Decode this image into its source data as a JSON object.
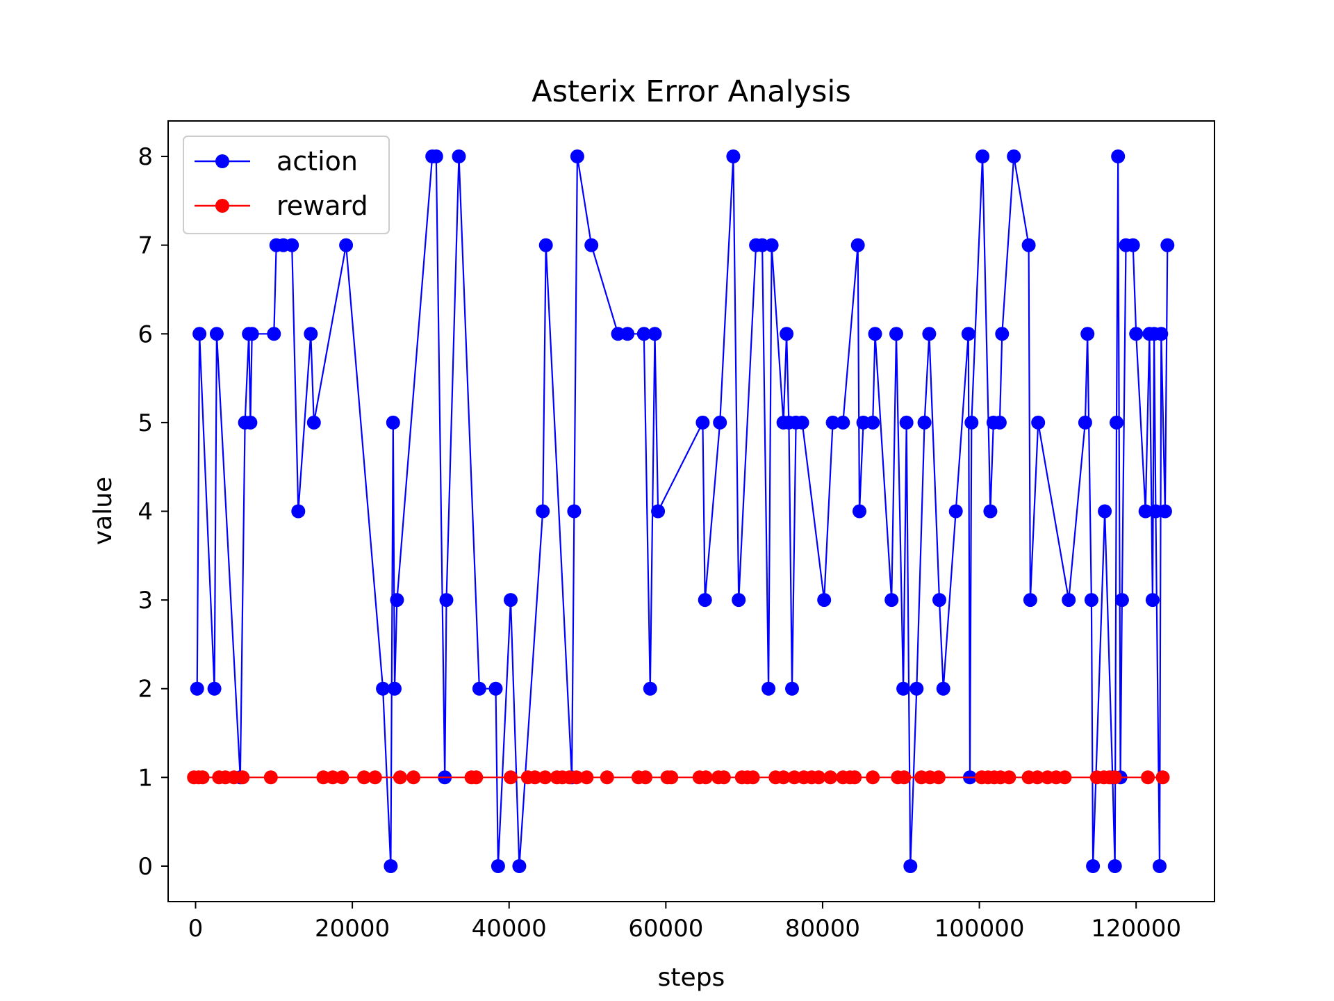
{
  "chart_data": {
    "type": "line",
    "title": "Asterix Error Analysis",
    "xlabel": "steps",
    "ylabel": "value",
    "xlim": [
      -3500,
      130000
    ],
    "ylim": [
      -0.4,
      8.4
    ],
    "xticks": [
      0,
      20000,
      40000,
      60000,
      80000,
      100000,
      120000
    ],
    "yticks": [
      0,
      1,
      2,
      3,
      4,
      5,
      6,
      7,
      8
    ],
    "grid": false,
    "legend_position": "top-left",
    "series": [
      {
        "name": "action",
        "color": "#0000ff",
        "marker": "circle",
        "points": [
          [
            200,
            2
          ],
          [
            500,
            6
          ],
          [
            2400,
            2
          ],
          [
            2700,
            6
          ],
          [
            5700,
            1
          ],
          [
            6300,
            5
          ],
          [
            6800,
            6
          ],
          [
            7000,
            5
          ],
          [
            7200,
            6
          ],
          [
            10000,
            6
          ],
          [
            10300,
            7
          ],
          [
            11200,
            7
          ],
          [
            12300,
            7
          ],
          [
            13100,
            4
          ],
          [
            14700,
            6
          ],
          [
            15100,
            5
          ],
          [
            19200,
            7
          ],
          [
            23900,
            2
          ],
          [
            24900,
            0
          ],
          [
            25200,
            5
          ],
          [
            25400,
            2
          ],
          [
            25700,
            3
          ],
          [
            30200,
            8
          ],
          [
            30700,
            8
          ],
          [
            31800,
            1
          ],
          [
            32000,
            3
          ],
          [
            33600,
            8
          ],
          [
            36200,
            2
          ],
          [
            38300,
            2
          ],
          [
            38600,
            0
          ],
          [
            40200,
            3
          ],
          [
            41300,
            0
          ],
          [
            44300,
            4
          ],
          [
            44700,
            7
          ],
          [
            48000,
            1
          ],
          [
            48300,
            4
          ],
          [
            48700,
            8
          ],
          [
            50500,
            7
          ],
          [
            53900,
            6
          ],
          [
            55100,
            6
          ],
          [
            57200,
            6
          ],
          [
            58000,
            2
          ],
          [
            58600,
            6
          ],
          [
            59000,
            4
          ],
          [
            64700,
            5
          ],
          [
            65000,
            3
          ],
          [
            66900,
            5
          ],
          [
            68600,
            8
          ],
          [
            69300,
            3
          ],
          [
            71500,
            7
          ],
          [
            72300,
            7
          ],
          [
            73100,
            2
          ],
          [
            73500,
            7
          ],
          [
            75000,
            5
          ],
          [
            75400,
            6
          ],
          [
            75700,
            5
          ],
          [
            76100,
            2
          ],
          [
            76600,
            5
          ],
          [
            77400,
            5
          ],
          [
            80200,
            3
          ],
          [
            81300,
            5
          ],
          [
            82600,
            5
          ],
          [
            84500,
            7
          ],
          [
            84700,
            4
          ],
          [
            85200,
            5
          ],
          [
            86400,
            5
          ],
          [
            86700,
            6
          ],
          [
            88800,
            3
          ],
          [
            89400,
            6
          ],
          [
            90300,
            2
          ],
          [
            90700,
            5
          ],
          [
            91200,
            0
          ],
          [
            92000,
            2
          ],
          [
            93000,
            5
          ],
          [
            93600,
            6
          ],
          [
            94900,
            3
          ],
          [
            95400,
            2
          ],
          [
            97000,
            4
          ],
          [
            98600,
            6
          ],
          [
            98800,
            1
          ],
          [
            99000,
            5
          ],
          [
            100400,
            8
          ],
          [
            101400,
            4
          ],
          [
            101800,
            5
          ],
          [
            102600,
            5
          ],
          [
            102900,
            6
          ],
          [
            104400,
            8
          ],
          [
            106300,
            7
          ],
          [
            106500,
            3
          ],
          [
            107500,
            5
          ],
          [
            111400,
            3
          ],
          [
            113500,
            5
          ],
          [
            113800,
            6
          ],
          [
            114300,
            3
          ],
          [
            114500,
            0
          ],
          [
            116000,
            4
          ],
          [
            117000,
            1
          ],
          [
            117300,
            0
          ],
          [
            117500,
            5
          ],
          [
            117700,
            8
          ],
          [
            118000,
            1
          ],
          [
            118200,
            3
          ],
          [
            118700,
            7
          ],
          [
            119600,
            7
          ],
          [
            120000,
            6
          ],
          [
            121200,
            4
          ],
          [
            121700,
            6
          ],
          [
            122100,
            3
          ],
          [
            122300,
            6
          ],
          [
            122500,
            4
          ],
          [
            123000,
            0
          ],
          [
            123200,
            6
          ],
          [
            123700,
            4
          ],
          [
            124000,
            7
          ]
        ]
      },
      {
        "name": "reward",
        "color": "#ff0000",
        "marker": "circle",
        "points": [
          [
            -200,
            1
          ],
          [
            400,
            1
          ],
          [
            900,
            1
          ],
          [
            3000,
            1
          ],
          [
            3800,
            1
          ],
          [
            4900,
            1
          ],
          [
            6000,
            1
          ],
          [
            9600,
            1
          ],
          [
            16300,
            1
          ],
          [
            17500,
            1
          ],
          [
            18700,
            1
          ],
          [
            21500,
            1
          ],
          [
            22900,
            1
          ],
          [
            26100,
            1
          ],
          [
            27800,
            1
          ],
          [
            35200,
            1
          ],
          [
            35800,
            1
          ],
          [
            40200,
            1
          ],
          [
            42400,
            1
          ],
          [
            43300,
            1
          ],
          [
            44600,
            1
          ],
          [
            46100,
            1
          ],
          [
            46800,
            1
          ],
          [
            47700,
            1
          ],
          [
            48600,
            1
          ],
          [
            49900,
            1
          ],
          [
            52500,
            1
          ],
          [
            56500,
            1
          ],
          [
            57400,
            1
          ],
          [
            60200,
            1
          ],
          [
            60700,
            1
          ],
          [
            64300,
            1
          ],
          [
            65100,
            1
          ],
          [
            66700,
            1
          ],
          [
            67400,
            1
          ],
          [
            69700,
            1
          ],
          [
            70400,
            1
          ],
          [
            71100,
            1
          ],
          [
            74000,
            1
          ],
          [
            75000,
            1
          ],
          [
            76400,
            1
          ],
          [
            77600,
            1
          ],
          [
            78600,
            1
          ],
          [
            79500,
            1
          ],
          [
            81000,
            1
          ],
          [
            82600,
            1
          ],
          [
            83500,
            1
          ],
          [
            84100,
            1
          ],
          [
            86400,
            1
          ],
          [
            89600,
            1
          ],
          [
            90400,
            1
          ],
          [
            92600,
            1
          ],
          [
            93700,
            1
          ],
          [
            94800,
            1
          ],
          [
            100300,
            1
          ],
          [
            101100,
            1
          ],
          [
            101900,
            1
          ],
          [
            102700,
            1
          ],
          [
            103800,
            1
          ],
          [
            106300,
            1
          ],
          [
            107400,
            1
          ],
          [
            108700,
            1
          ],
          [
            109800,
            1
          ],
          [
            110900,
            1
          ],
          [
            115000,
            1
          ],
          [
            115900,
            1
          ],
          [
            116600,
            1
          ],
          [
            117300,
            1
          ],
          [
            121500,
            1
          ],
          [
            123400,
            1
          ]
        ]
      }
    ]
  }
}
